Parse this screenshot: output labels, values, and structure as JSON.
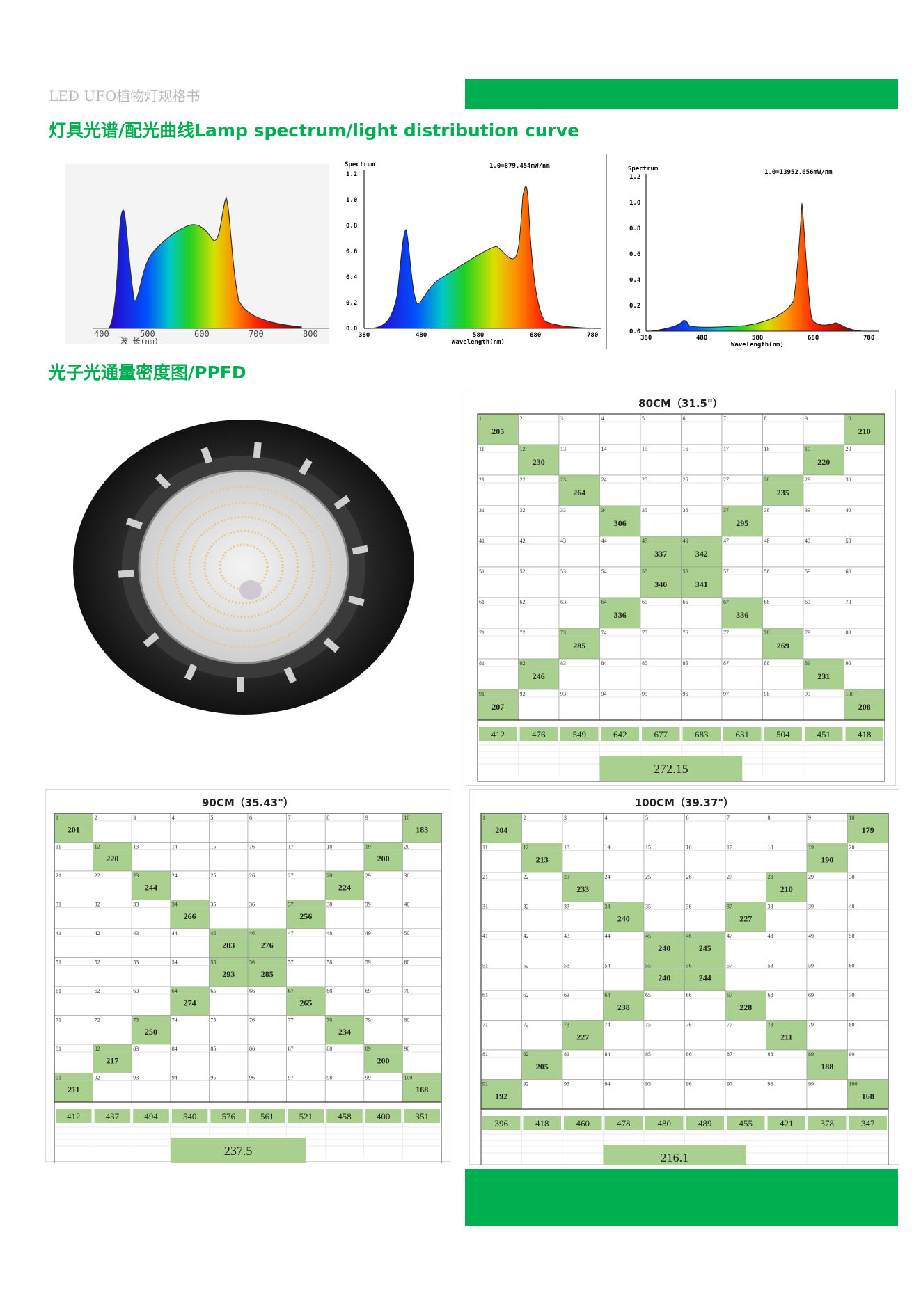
{
  "header": {
    "doc_title": "LED UFO植物灯规格书",
    "section1_title": "灯具光谱/配光曲线Lamp spectrum/light distribution curve",
    "section2_title": "光子光通量密度图/PPFD"
  },
  "colors": {
    "accent": "#00b050",
    "cell_fill": "#a9d08e"
  },
  "spectra": [
    {
      "id": "color-spectrum",
      "x_ticks": [
        "400",
        "500",
        "600",
        "700",
        "800"
      ],
      "xlabel": "波 长(nm)"
    },
    {
      "id": "spectrum-full",
      "ylabel": "Spectrum",
      "peak_label": "1.0=879.454mW/nm",
      "y_ticks": [
        "0.0",
        "0.2",
        "0.4",
        "0.6",
        "0.8",
        "1.0",
        "1.2"
      ],
      "x_ticks": [
        "380",
        "480",
        "580",
        "680",
        "780"
      ],
      "xlabel": "Wavelength(nm)"
    },
    {
      "id": "spectrum-red",
      "ylabel": "Spectrum",
      "peak_label": "1.0=13952.656mW/nm",
      "y_ticks": [
        "0.0",
        "0.2",
        "0.4",
        "0.6",
        "0.8",
        "1.0",
        "1.2"
      ],
      "x_ticks": [
        "380",
        "480",
        "580",
        "680",
        "780"
      ],
      "xlabel": "Wavelength(nm)"
    }
  ],
  "ppfd_grids": [
    {
      "id": "grid-80cm",
      "title": "80CM（31.5\"）",
      "cells": [
        [
          1,
          "205"
        ],
        [
          10,
          "210"
        ],
        [
          12,
          "230"
        ],
        [
          19,
          "220"
        ],
        [
          23,
          "264"
        ],
        [
          28,
          "235"
        ],
        [
          34,
          "306"
        ],
        [
          37,
          "295"
        ],
        [
          45,
          "337"
        ],
        [
          46,
          "342"
        ],
        [
          55,
          "340"
        ],
        [
          56,
          "341"
        ],
        [
          64,
          "336"
        ],
        [
          67,
          "336"
        ],
        [
          73,
          "285"
        ],
        [
          78,
          "269"
        ],
        [
          82,
          "246"
        ],
        [
          89,
          "231"
        ],
        [
          91,
          "207"
        ],
        [
          100,
          "208"
        ]
      ],
      "sums": [
        "412",
        "476",
        "549",
        "642",
        "677",
        "683",
        "631",
        "504",
        "451",
        "418"
      ],
      "average": "272.15"
    },
    {
      "id": "grid-90cm",
      "title": "90CM（35.43\"）",
      "cells": [
        [
          1,
          "201"
        ],
        [
          10,
          "183"
        ],
        [
          12,
          "220"
        ],
        [
          19,
          "200"
        ],
        [
          23,
          "244"
        ],
        [
          28,
          "224"
        ],
        [
          34,
          "266"
        ],
        [
          37,
          "256"
        ],
        [
          45,
          "283"
        ],
        [
          46,
          "276"
        ],
        [
          55,
          "293"
        ],
        [
          56,
          "285"
        ],
        [
          64,
          "274"
        ],
        [
          67,
          "265"
        ],
        [
          73,
          "250"
        ],
        [
          78,
          "234"
        ],
        [
          82,
          "217"
        ],
        [
          89,
          "200"
        ],
        [
          91,
          "211"
        ],
        [
          100,
          "168"
        ]
      ],
      "sums": [
        "412",
        "437",
        "494",
        "540",
        "576",
        "561",
        "521",
        "458",
        "400",
        "351"
      ],
      "average": "237.5"
    },
    {
      "id": "grid-100cm",
      "title": "100CM（39.37\"）",
      "cells": [
        [
          1,
          "204"
        ],
        [
          10,
          "179"
        ],
        [
          12,
          "213"
        ],
        [
          19,
          "190"
        ],
        [
          23,
          "233"
        ],
        [
          28,
          "210"
        ],
        [
          34,
          "240"
        ],
        [
          37,
          "227"
        ],
        [
          45,
          "240"
        ],
        [
          46,
          "245"
        ],
        [
          55,
          "240"
        ],
        [
          56,
          "244"
        ],
        [
          64,
          "238"
        ],
        [
          67,
          "228"
        ],
        [
          73,
          "227"
        ],
        [
          78,
          "211"
        ],
        [
          82,
          "205"
        ],
        [
          89,
          "188"
        ],
        [
          91,
          "192"
        ],
        [
          100,
          "168"
        ]
      ],
      "sums": [
        "396",
        "418",
        "460",
        "478",
        "480",
        "489",
        "455",
        "421",
        "378",
        "347"
      ],
      "average": "216.1"
    }
  ]
}
